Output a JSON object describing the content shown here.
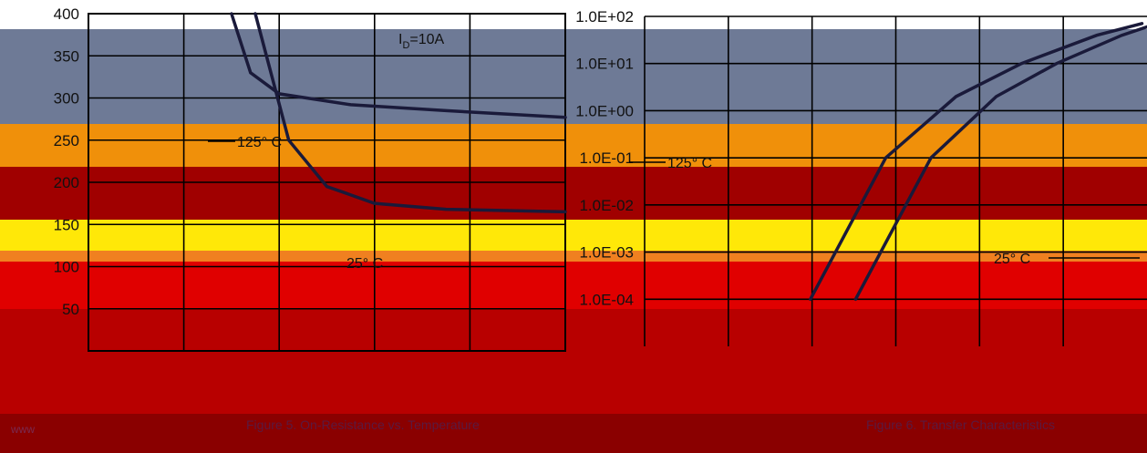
{
  "chart_data": [
    {
      "type": "line",
      "title": "",
      "xlabel": "",
      "ylabel": "",
      "yticks": [
        "400",
        "350",
        "300",
        "250",
        "200",
        "150",
        "100",
        "50"
      ],
      "ylim": [
        0,
        400
      ],
      "annotations": {
        "id": "I",
        "id_sub": "D",
        "id_val": "=10A",
        "hot": "125° C",
        "room": "25° C"
      },
      "series": [
        {
          "name": "",
          "points": [
            [
              0.3,
              400
            ],
            [
              0.34,
              330
            ],
            [
              0.4,
              305
            ],
            [
              0.55,
              292
            ],
            [
              0.75,
              285
            ],
            [
              1.0,
              277
            ]
          ]
        },
        {
          "name": "",
          "points": [
            [
              0.35,
              400
            ],
            [
              0.42,
              250
            ],
            [
              0.5,
              195
            ],
            [
              0.6,
              175
            ],
            [
              0.75,
              168
            ],
            [
              1.0,
              165
            ]
          ]
        }
      ]
    },
    {
      "type": "line",
      "title": "",
      "xlabel": "",
      "ylabel": "",
      "log_y": true,
      "yticks": [
        "1.0E+02",
        "1.0E+01",
        "1.0E+00",
        "1.0E-01",
        "1.0E-02",
        "1.0E-03",
        "1.0E-04"
      ],
      "annotations": {
        "hot": "125° C",
        "room": "25° C"
      },
      "series": [
        {
          "name": "",
          "points": [
            [
              0.33,
              -4
            ],
            [
              0.48,
              -1
            ],
            [
              0.62,
              0.3
            ],
            [
              0.75,
              1.0
            ],
            [
              0.9,
              1.6
            ],
            [
              0.99,
              1.85
            ]
          ]
        },
        {
          "name": "",
          "points": [
            [
              0.42,
              -4
            ],
            [
              0.57,
              -1
            ],
            [
              0.7,
              0.3
            ],
            [
              0.82,
              1.0
            ],
            [
              0.95,
              1.6
            ],
            [
              1.02,
              1.85
            ]
          ]
        }
      ]
    }
  ],
  "captions": {
    "left": "Figure 5. On-Resistance vs. Temperature",
    "right": "Figure 6. Transfer Characteristics",
    "corner": "www"
  }
}
